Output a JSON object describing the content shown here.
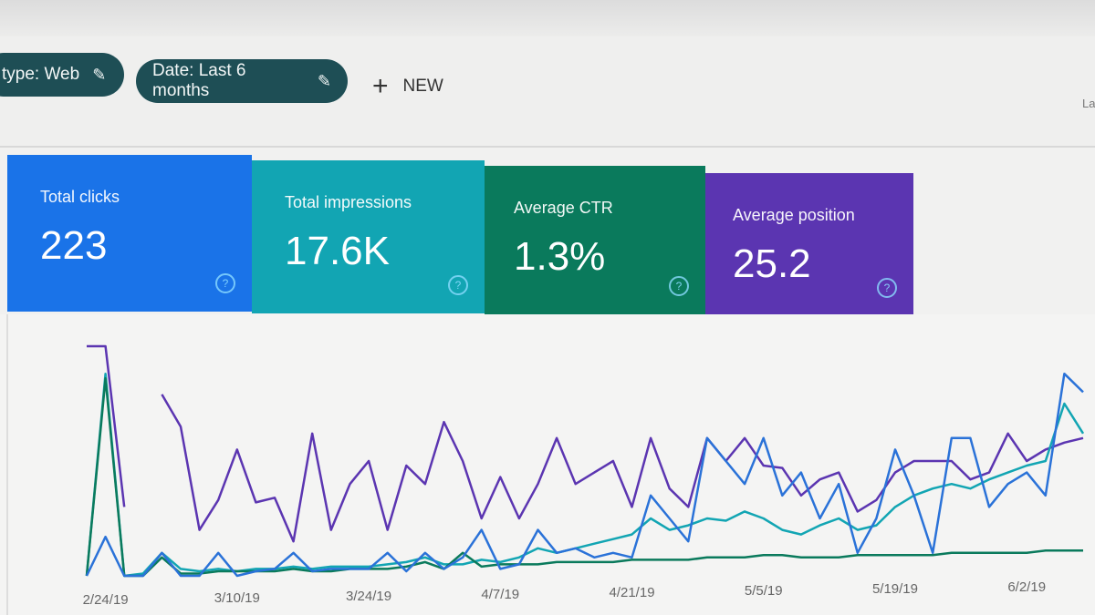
{
  "filters": {
    "chips": [
      {
        "label": "type: Web",
        "icon": "pencil-icon"
      },
      {
        "label": "Date: Last 6 months",
        "icon": "pencil-icon"
      }
    ],
    "new_label": "NEW",
    "right_cutoff_text": "La"
  },
  "cards": [
    {
      "label": "Total clicks",
      "value": "223",
      "color": "#1a73e8"
    },
    {
      "label": "Total impressions",
      "value": "17.6K",
      "color": "#12a5b3"
    },
    {
      "label": "Average CTR",
      "value": "1.3%",
      "color": "#0a7a5c"
    },
    {
      "label": "Average position",
      "value": "25.2",
      "color": "#5b35b1"
    }
  ],
  "chart_data": {
    "type": "line",
    "title": "",
    "xlabel": "",
    "ylabel": "",
    "grid": false,
    "x_ticks": [
      "2/24/19",
      "3/10/19",
      "3/24/19",
      "4/7/19",
      "4/21/19",
      "5/5/19",
      "5/19/19",
      "6/2/19"
    ],
    "categories": [
      "2/22/19",
      "2/24/19",
      "2/26/19",
      "2/28/19",
      "3/2/19",
      "3/4/19",
      "3/6/19",
      "3/8/19",
      "3/10/19",
      "3/12/19",
      "3/14/19",
      "3/16/19",
      "3/18/19",
      "3/20/19",
      "3/22/19",
      "3/24/19",
      "3/26/19",
      "3/28/19",
      "3/30/19",
      "4/1/19",
      "4/3/19",
      "4/5/19",
      "4/7/19",
      "4/9/19",
      "4/11/19",
      "4/13/19",
      "4/15/19",
      "4/17/19",
      "4/19/19",
      "4/21/19",
      "4/23/19",
      "4/25/19",
      "4/27/19",
      "4/29/19",
      "5/1/19",
      "5/3/19",
      "5/5/19",
      "5/7/19",
      "5/9/19",
      "5/11/19",
      "5/13/19",
      "5/15/19",
      "5/17/19",
      "5/19/19",
      "5/21/19",
      "5/23/19",
      "5/25/19",
      "5/27/19",
      "5/29/19",
      "5/31/19",
      "6/2/19",
      "6/4/19",
      "6/6/19",
      "6/8/19"
    ],
    "ylim": [
      0,
      100
    ],
    "series": [
      {
        "color": "#5b35b1",
        "values": [
          100,
          100,
          30,
          null,
          79,
          65,
          20,
          33,
          55,
          32,
          34,
          15,
          62,
          20,
          40,
          50,
          20,
          48,
          40,
          67,
          50,
          25,
          43,
          25,
          40,
          60,
          40,
          45,
          50,
          30,
          60,
          38,
          30,
          60,
          50,
          60,
          48,
          47,
          35,
          42,
          45,
          28,
          33,
          45,
          50,
          50,
          50,
          42,
          45,
          62,
          50,
          55,
          58,
          60
        ]
      },
      {
        "color": "#12a5b3",
        "values": [
          0,
          88,
          0,
          1,
          10,
          3,
          2,
          3,
          2,
          3,
          3,
          4,
          3,
          4,
          4,
          4,
          5,
          6,
          8,
          5,
          5,
          7,
          6,
          8,
          12,
          10,
          12,
          14,
          16,
          18,
          25,
          20,
          22,
          25,
          24,
          28,
          25,
          20,
          18,
          22,
          25,
          20,
          22,
          30,
          35,
          38,
          40,
          38,
          42,
          45,
          48,
          50,
          75,
          62
        ]
      },
      {
        "color": "#0a7a5c",
        "values": [
          0,
          86,
          0,
          0,
          8,
          1,
          1,
          2,
          2,
          2,
          2,
          3,
          2,
          2,
          3,
          3,
          3,
          4,
          6,
          3,
          10,
          4,
          5,
          5,
          5,
          6,
          6,
          6,
          6,
          7,
          7,
          7,
          7,
          8,
          8,
          8,
          9,
          9,
          8,
          8,
          8,
          9,
          9,
          9,
          9,
          9,
          10,
          10,
          10,
          10,
          10,
          11,
          11,
          11
        ]
      },
      {
        "color": "#2a72d8",
        "values": [
          0,
          17,
          0,
          0,
          10,
          0,
          0,
          10,
          0,
          2,
          3,
          10,
          2,
          3,
          3,
          3,
          10,
          2,
          10,
          3,
          8,
          20,
          3,
          5,
          20,
          10,
          12,
          8,
          10,
          8,
          35,
          25,
          15,
          60,
          50,
          40,
          60,
          35,
          45,
          25,
          40,
          10,
          25,
          55,
          35,
          10,
          60,
          60,
          30,
          40,
          45,
          35,
          88,
          80
        ]
      }
    ]
  }
}
